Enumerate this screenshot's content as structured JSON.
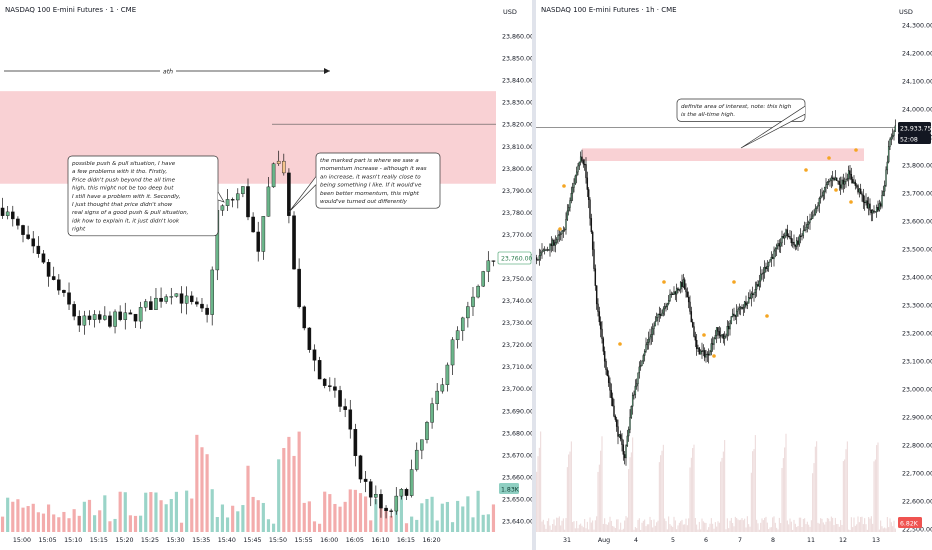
{
  "left": {
    "title": "NASDAQ 100 E-mini Futures · 1 · CME",
    "currency": "USD",
    "ath_label": "ath",
    "price_ticks": [
      "23,860.00",
      "23,850.00",
      "23,840.00",
      "23,830.00",
      "23,820.00",
      "23,810.00",
      "23,800.00",
      "23,790.00",
      "23,780.00",
      "23,770.00",
      "23,760.00",
      "23,750.00",
      "23,740.00",
      "23,730.00",
      "23,720.00",
      "23,710.00",
      "23,700.00",
      "23,690.00",
      "23,680.00",
      "23,670.00",
      "23,660.00",
      "23,650.00",
      "23,640.00"
    ],
    "time_ticks": [
      "15:00",
      "15:05",
      "15:10",
      "15:15",
      "15:20",
      "15:25",
      "15:30",
      "15:35",
      "15:40",
      "15:45",
      "15:50",
      "15:55",
      "16:00",
      "16:05",
      "16:10",
      "16:15",
      "16:20"
    ],
    "current_price": "23,760.00",
    "volume_badge": "1.83K",
    "note1": [
      "possible push & pull situation, I have",
      "a few problems with it tho. Firstly,",
      "Price didn't push beyond the all time",
      "high, this might not be too deep but",
      "I still have a problem with it. Secondly,",
      "I just thought that price didn't show",
      "real signs of a good push & pull situation,",
      "idk how to explain it, it just didn't look",
      "right"
    ],
    "note2": [
      "the marked part is where we saw a",
      "momentum increase - although it was",
      "an increase, it wasn't really close to",
      "being something I like. If it would've",
      "been better momentum, this might",
      "would've turned out differently"
    ],
    "colors": {
      "up": "#6bb58a",
      "down": "#111111",
      "vol_up": "#8fcfc2",
      "vol_down": "#f2a3a3",
      "zone": "#f8c9cd",
      "highlight": "#f5c48e"
    }
  },
  "right": {
    "title": "NASDAQ 100 E-mini Futures · 1h · CME",
    "currency": "USD",
    "price_ticks": [
      "24,300.00",
      "24,200.00",
      "24,100.00",
      "24,000.00",
      "23,900.00",
      "23,800.00",
      "23,700.00",
      "23,600.00",
      "23,500.00",
      "23,400.00",
      "23,300.00",
      "23,200.00",
      "23,100.00",
      "23,000.00",
      "22,900.00",
      "22,800.00",
      "22,700.00",
      "22,600.00",
      "22,500.00"
    ],
    "date_ticks": [
      "31",
      "Aug",
      "4",
      "5",
      "6",
      "7",
      "8",
      "11",
      "12",
      "13"
    ],
    "current_price": "23,933.75",
    "countdown": "52:08",
    "volume_badge": "6.82K",
    "note": [
      "definite area of interest, note: this high",
      "is the all-time high."
    ],
    "colors": {
      "up": "#6bb58a",
      "down": "#111111",
      "vol": "#e9d3d3",
      "zone": "#f8c9cd",
      "marker": "#f5a623"
    }
  },
  "chart_data": [
    {
      "type": "candlestick",
      "title": "NASDAQ 100 E-mini Futures · 1 · CME",
      "x_ticks": [
        "15:00",
        "15:05",
        "15:10",
        "15:15",
        "15:20",
        "15:25",
        "15:30",
        "15:35",
        "15:40",
        "15:45",
        "15:50",
        "15:55",
        "16:00",
        "16:05",
        "16:10",
        "16:15",
        "16:20"
      ],
      "ylim": [
        23635,
        23870
      ],
      "zone": [
        23793,
        23835
      ],
      "ath_level": 23820,
      "close_path": [
        [
          0,
          23782
        ],
        [
          8,
          23755
        ],
        [
          15,
          23730
        ],
        [
          25,
          23732
        ],
        [
          33,
          23745
        ],
        [
          40,
          23732
        ],
        [
          42,
          23780
        ],
        [
          47,
          23790
        ],
        [
          50,
          23760
        ],
        [
          53,
          23805
        ],
        [
          55,
          23800
        ],
        [
          56,
          23775
        ],
        [
          58,
          23735
        ],
        [
          62,
          23705
        ],
        [
          67,
          23690
        ],
        [
          70,
          23660
        ],
        [
          75,
          23642
        ],
        [
          79,
          23655
        ],
        [
          84,
          23690
        ],
        [
          88,
          23720
        ],
        [
          93,
          23745
        ],
        [
          96,
          23760
        ]
      ]
    },
    {
      "type": "candlestick",
      "title": "NASDAQ 100 E-mini Futures · 1h · CME",
      "x_ticks": [
        "31",
        "Aug",
        "4",
        "5",
        "6",
        "7",
        "8",
        "11",
        "12",
        "13"
      ],
      "ylim": [
        22490,
        24340
      ],
      "zone": [
        23815,
        23860
      ],
      "ath_level": 23935,
      "close_path": [
        [
          0,
          23470
        ],
        [
          10,
          23510
        ],
        [
          20,
          23560
        ],
        [
          28,
          23740
        ],
        [
          33,
          23840
        ],
        [
          36,
          23800
        ],
        [
          40,
          23620
        ],
        [
          45,
          23300
        ],
        [
          52,
          23080
        ],
        [
          60,
          22860
        ],
        [
          66,
          22760
        ],
        [
          72,
          22970
        ],
        [
          80,
          23130
        ],
        [
          90,
          23250
        ],
        [
          100,
          23330
        ],
        [
          110,
          23380
        ],
        [
          115,
          23280
        ],
        [
          120,
          23140
        ],
        [
          128,
          23120
        ],
        [
          135,
          23210
        ],
        [
          140,
          23180
        ],
        [
          147,
          23260
        ],
        [
          155,
          23300
        ],
        [
          163,
          23350
        ],
        [
          172,
          23440
        ],
        [
          180,
          23500
        ],
        [
          187,
          23560
        ],
        [
          194,
          23510
        ],
        [
          200,
          23560
        ],
        [
          207,
          23610
        ],
        [
          214,
          23700
        ],
        [
          222,
          23760
        ],
        [
          228,
          23730
        ],
        [
          234,
          23770
        ],
        [
          240,
          23720
        ],
        [
          246,
          23670
        ],
        [
          252,
          23630
        ],
        [
          258,
          23660
        ],
        [
          261,
          23740
        ],
        [
          265,
          23900
        ],
        [
          269,
          23933
        ]
      ]
    }
  ]
}
